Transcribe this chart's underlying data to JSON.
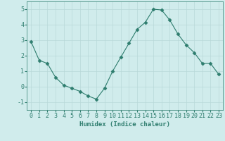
{
  "x": [
    0,
    1,
    2,
    3,
    4,
    5,
    6,
    7,
    8,
    9,
    10,
    11,
    12,
    13,
    14,
    15,
    16,
    17,
    18,
    19,
    20,
    21,
    22,
    23
  ],
  "y": [
    2.9,
    1.7,
    1.5,
    0.6,
    0.1,
    -0.1,
    -0.3,
    -0.6,
    -0.8,
    -0.1,
    1.0,
    1.9,
    2.8,
    3.7,
    4.15,
    5.0,
    4.95,
    4.3,
    3.4,
    2.7,
    2.2,
    1.5,
    1.5,
    0.8
  ],
  "line_color": "#2e7d6e",
  "marker": "D",
  "marker_size": 2.5,
  "xlabel": "Humidex (Indice chaleur)",
  "ylim": [
    -1.5,
    5.5
  ],
  "xlim": [
    -0.5,
    23.5
  ],
  "yticks": [
    -1,
    0,
    1,
    2,
    3,
    4,
    5
  ],
  "xticks": [
    0,
    1,
    2,
    3,
    4,
    5,
    6,
    7,
    8,
    9,
    10,
    11,
    12,
    13,
    14,
    15,
    16,
    17,
    18,
    19,
    20,
    21,
    22,
    23
  ],
  "bg_color": "#d0ecec",
  "grid_color": "#b8d8d8",
  "font_color": "#2e7d6e",
  "xlabel_fontsize": 6.5,
  "tick_fontsize": 6
}
